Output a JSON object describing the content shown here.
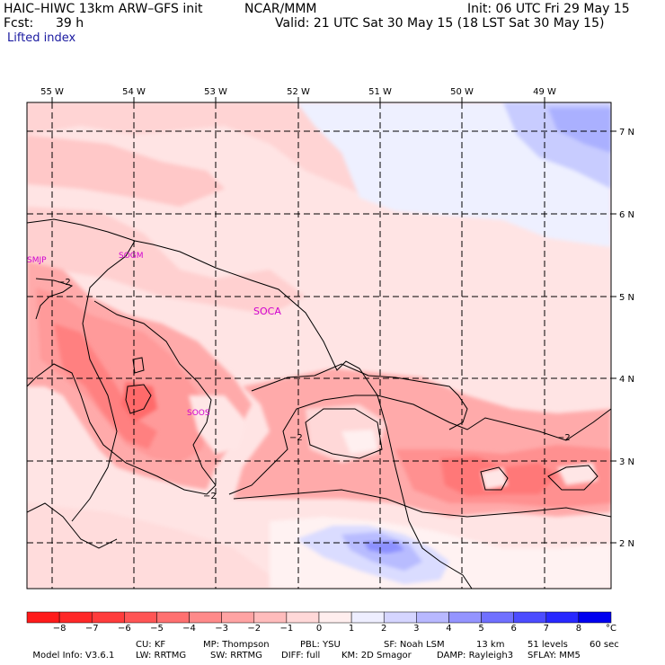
{
  "header": {
    "model": "HAIC–HIWC 13km ARW–GFS init",
    "org": "NCAR/MMM",
    "init": "Init: 06 UTC Fri 29 May 15",
    "fcst_label": "Fcst:",
    "fcst_value": "39 h",
    "valid": "Valid: 21 UTC Sat 30 May 15 (18 LST Sat 30 May 15)",
    "field": "Lifted index"
  },
  "map": {
    "lon_labels": [
      "55 W",
      "54 W",
      "53 W",
      "52 W",
      "51 W",
      "50 W",
      "49 W"
    ],
    "lat_labels": [
      "7 N",
      "6 N",
      "5 N",
      "4 N",
      "3 N",
      "2 N"
    ],
    "stations": [
      "SMJP",
      "SOGM",
      "SOCA",
      "SOOS"
    ],
    "contour_labels": [
      "−2",
      "−2",
      "−2",
      "−2"
    ]
  },
  "colorbar": {
    "labels": [
      "−8",
      "−7",
      "−6",
      "−5",
      "−4",
      "−3",
      "−2",
      "−1",
      "0",
      "1",
      "2",
      "3",
      "4",
      "5",
      "6",
      "7",
      "8"
    ],
    "unit": "°C",
    "colors": [
      "#ff1a1a",
      "#ff2828",
      "#ff3c3c",
      "#ff5555",
      "#ff7070",
      "#ff8a8a",
      "#ffa3a3",
      "#ffbcbc",
      "#ffd8d8",
      "#ffeeee",
      "#eeeeff",
      "#d5d5ff",
      "#b8b8ff",
      "#9494ff",
      "#7070ff",
      "#4c4cff",
      "#2828ff",
      "#0000f0"
    ]
  },
  "footer": {
    "line1": [
      "Model Info: V3.6.1",
      "CU: KF",
      "MP: Thompson",
      "PBL: YSU",
      "SF: Noah LSM",
      "13 km",
      "51 levels",
      "60 sec"
    ],
    "line2": [
      "LW: RRTMG",
      "SW: RRTMG",
      "DIFF: full",
      "KM: 2D Smagor",
      "DAMP: Rayleigh3",
      "SFLAY: MM5"
    ]
  }
}
